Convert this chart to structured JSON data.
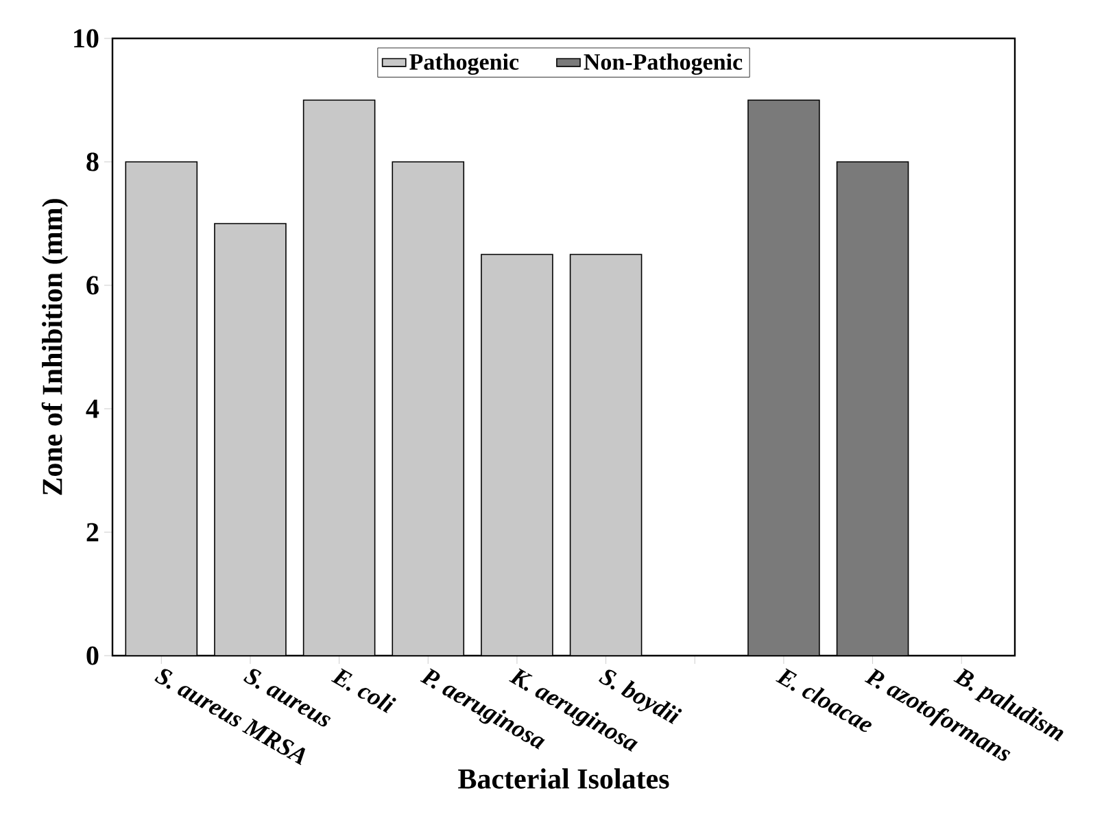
{
  "chart_data": {
    "type": "bar",
    "xlabel": "Bacterial Isolates",
    "ylabel": "Zone of Inhibition (mm)",
    "categories": [
      "S. aureus MRSA",
      "S. aureus",
      "E. coli",
      "P. aeruginosa",
      "K. aeruginosa",
      "S. boydii",
      null,
      "E. cloacae",
      "P. azotoformans",
      "B. paludism"
    ],
    "series": [
      {
        "name": "Pathogenic",
        "color": "#c8c8c8",
        "values": [
          8,
          7,
          9,
          8,
          6.5,
          6.5,
          null,
          null,
          null,
          null
        ]
      },
      {
        "name": "Non-Pathogenic",
        "color": "#7a7a7a",
        "values": [
          null,
          null,
          null,
          null,
          null,
          null,
          null,
          9,
          8,
          null
        ]
      }
    ],
    "ylim": [
      0,
      10
    ],
    "yticks": [
      0,
      2,
      4,
      6,
      8,
      10
    ],
    "legend": "top",
    "grid": false
  }
}
